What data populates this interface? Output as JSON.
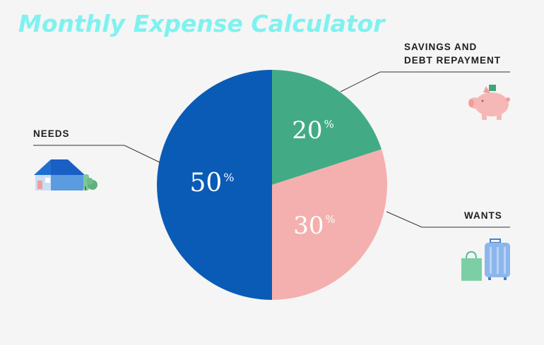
{
  "title": "Monthly Expense Calculator",
  "chart_data": {
    "type": "pie",
    "slices": [
      {
        "label": "NEEDS",
        "value": 50,
        "display": "50",
        "color": "#0a5bb5"
      },
      {
        "label": "SAVINGS AND DEBT REPAYMENT",
        "value": 20,
        "display": "20",
        "color": "#42ab85"
      },
      {
        "label": "WANTS",
        "value": 30,
        "display": "30",
        "color": "#f4b0ae"
      }
    ],
    "unit_symbol": "%"
  },
  "labels": {
    "needs": "NEEDS",
    "savings_line1": "SAVINGS AND",
    "savings_line2": "DEBT REPAYMENT",
    "wants": "WANTS"
  },
  "icons": {
    "needs": "house-icon",
    "savings": "piggy-bank-icon",
    "wants": "shopping-bag-and-luggage-icon"
  }
}
